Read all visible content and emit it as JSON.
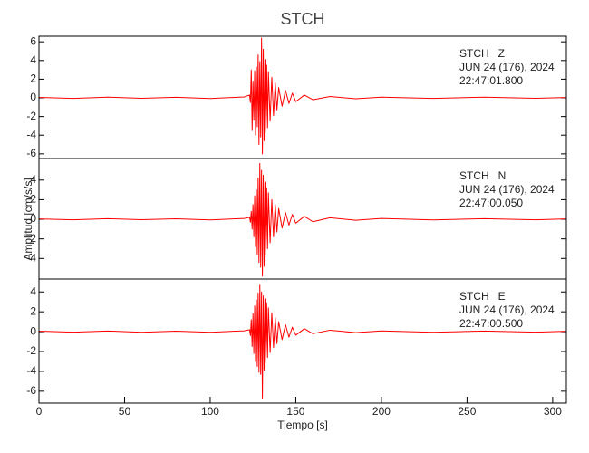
{
  "chart_data": [
    {
      "type": "line",
      "title": "STCH",
      "annotations": [
        "STCH   Z",
        "JUN 24 (176), 2024",
        "22:47:01.800"
      ],
      "color": "#ff0000",
      "x": [
        0,
        20,
        40,
        60,
        80,
        100,
        120,
        123,
        123.5,
        124,
        124.5,
        125,
        125.5,
        126,
        126.5,
        127,
        127.5,
        128,
        128.5,
        129,
        129.5,
        130,
        130.5,
        131,
        131.5,
        132,
        132.5,
        133,
        133.5,
        134,
        135,
        136,
        137,
        138,
        139,
        140,
        142,
        144,
        146,
        148,
        150,
        155,
        160,
        170,
        185,
        200,
        230,
        260,
        290,
        308
      ],
      "values": [
        0.05,
        -0.06,
        0.08,
        -0.05,
        0.06,
        -0.07,
        0.1,
        0.3,
        -0.5,
        3.0,
        -3.5,
        1.8,
        -2.4,
        2.9,
        -4.0,
        3.3,
        -3.1,
        4.6,
        -5.0,
        3.9,
        -4.2,
        6.4,
        -6.0,
        5.2,
        -4.6,
        4.1,
        -3.8,
        3.5,
        -3.2,
        2.8,
        -2.5,
        2.2,
        -1.9,
        1.6,
        -1.3,
        1.1,
        -0.9,
        0.8,
        -0.6,
        0.5,
        -0.4,
        0.3,
        -0.2,
        0.15,
        -0.1,
        0.08,
        -0.06,
        0.07,
        -0.05,
        0.04
      ],
      "xlim": [
        0,
        308
      ],
      "ylim": [
        -6.5,
        6.6
      ],
      "yticks": [
        -6,
        -4,
        -2,
        0,
        2,
        4,
        6
      ]
    },
    {
      "type": "line",
      "ylabel": "Amplitud [cm/s/s]",
      "annotations": [
        "STCH   N",
        "JUN 24 (176), 2024",
        "22:47:00.050"
      ],
      "color": "#ff0000",
      "x": [
        0,
        20,
        40,
        60,
        80,
        100,
        120,
        123,
        123.5,
        124,
        124.5,
        125,
        125.5,
        126,
        126.5,
        127,
        127.5,
        128,
        128.5,
        129,
        129.5,
        130,
        130.5,
        131,
        131.5,
        132,
        132.5,
        133,
        133.5,
        134,
        135,
        136,
        137,
        138,
        139,
        140,
        142,
        144,
        146,
        148,
        150,
        155,
        160,
        170,
        185,
        200,
        230,
        260,
        290,
        308
      ],
      "values": [
        0.04,
        -0.05,
        0.06,
        -0.04,
        0.05,
        -0.06,
        0.08,
        0.2,
        -0.3,
        0.8,
        -1.0,
        1.5,
        -1.8,
        2.4,
        -2.8,
        3.0,
        -3.6,
        4.2,
        -4.4,
        5.7,
        -4.9,
        5.0,
        -5.8,
        4.5,
        -4.8,
        3.8,
        -3.6,
        3.2,
        -3.0,
        2.7,
        -2.4,
        2.0,
        -1.8,
        1.5,
        -1.3,
        1.1,
        -0.9,
        0.7,
        -0.6,
        0.5,
        -0.4,
        0.3,
        -0.25,
        0.15,
        -0.1,
        0.08,
        -0.06,
        0.06,
        -0.05,
        0.04
      ],
      "xlim": [
        0,
        308
      ],
      "ylim": [
        -6.1,
        6.2
      ],
      "yticks": [
        -4,
        -2,
        0,
        2,
        4
      ]
    },
    {
      "type": "line",
      "xlabel": "Tiempo [s]",
      "annotations": [
        "STCH   E",
        "JUN 24 (176), 2024",
        "22:47:00.500"
      ],
      "color": "#ff0000",
      "x": [
        0,
        20,
        40,
        60,
        80,
        100,
        120,
        123,
        123.5,
        124,
        124.5,
        125,
        125.5,
        126,
        126.5,
        127,
        127.5,
        128,
        128.5,
        129,
        129.5,
        130,
        130.5,
        131,
        131.5,
        132,
        132.5,
        133,
        133.5,
        134,
        135,
        136,
        137,
        138,
        139,
        140,
        142,
        144,
        146,
        148,
        150,
        155,
        160,
        170,
        185,
        200,
        230,
        260,
        290,
        308
      ],
      "values": [
        0.05,
        -0.05,
        0.07,
        -0.06,
        0.05,
        -0.06,
        0.09,
        0.2,
        -0.4,
        1.2,
        -1.5,
        1.8,
        -2.2,
        2.6,
        -3.0,
        3.2,
        -3.5,
        3.9,
        -4.1,
        4.7,
        -4.3,
        4.0,
        -6.7,
        3.6,
        -3.9,
        3.3,
        -3.1,
        2.9,
        -2.6,
        2.4,
        -2.1,
        1.9,
        -1.6,
        1.4,
        -1.2,
        1.0,
        -0.8,
        0.7,
        -0.55,
        0.45,
        -0.35,
        0.3,
        -0.2,
        0.15,
        -0.1,
        0.08,
        -0.06,
        0.06,
        -0.05,
        0.04
      ],
      "xlim": [
        0,
        308
      ],
      "ylim": [
        -7.2,
        5.3
      ],
      "yticks": [
        -6,
        -4,
        -2,
        0,
        2,
        4
      ],
      "xticks": [
        0,
        50,
        100,
        150,
        200,
        250,
        300
      ]
    }
  ]
}
